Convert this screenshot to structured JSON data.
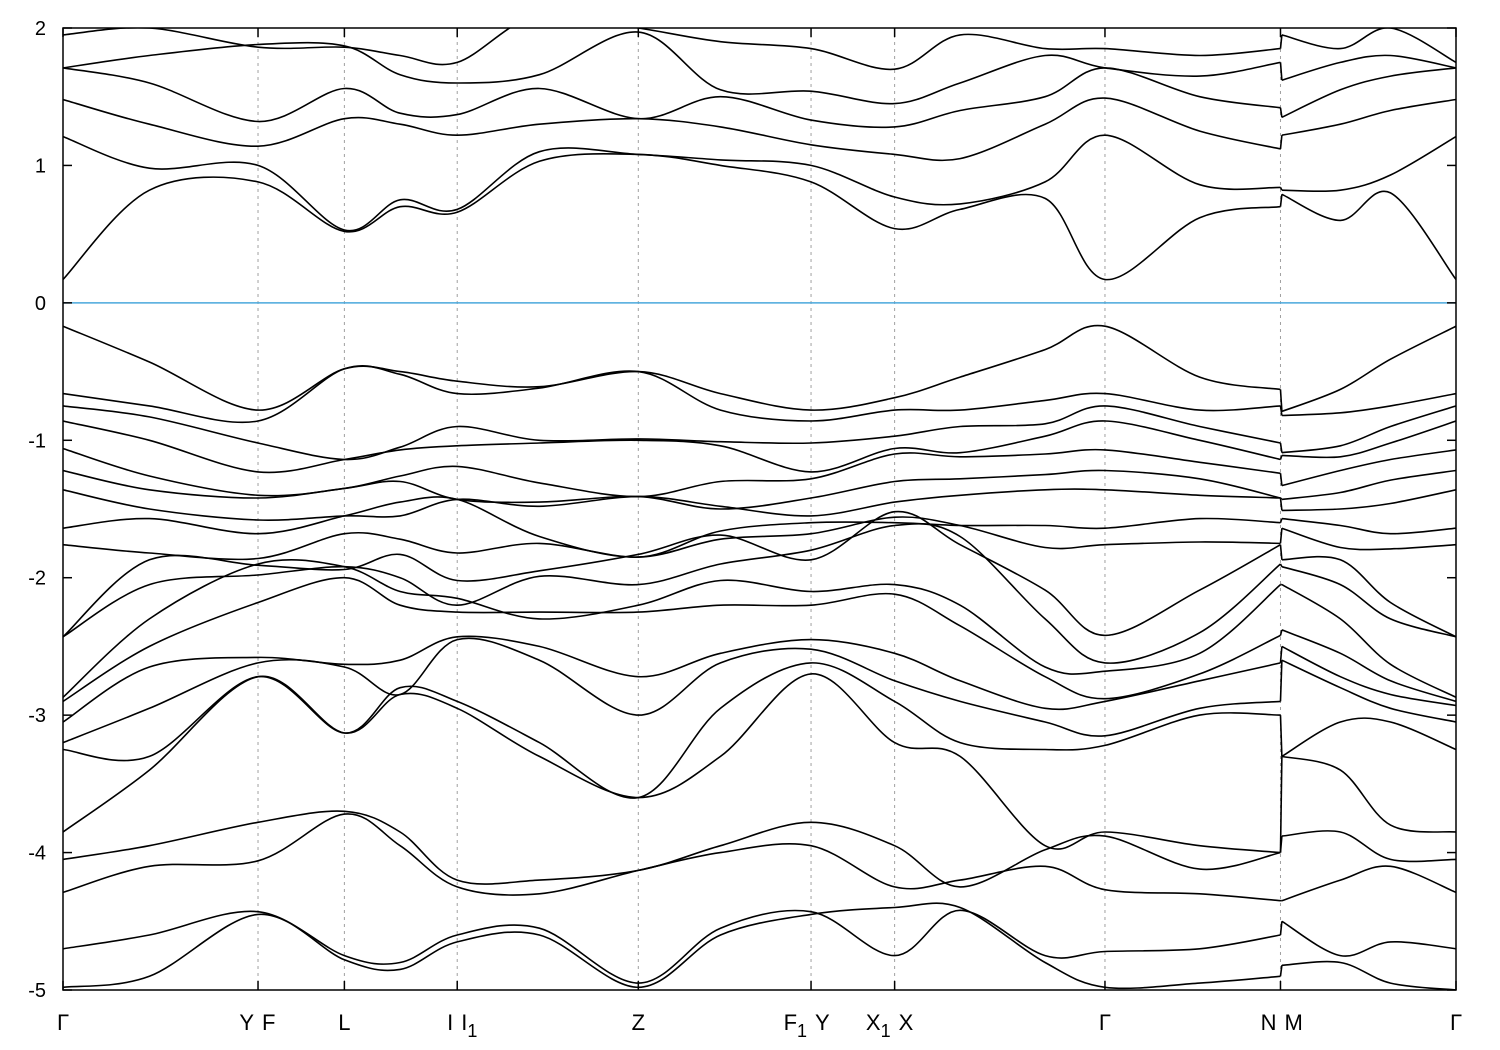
{
  "chart_data": {
    "type": "line",
    "title": "",
    "xlabel": "",
    "ylabel": "",
    "ylim": [
      -5,
      2
    ],
    "xlim": [
      0,
      1
    ],
    "yticks": [
      -5,
      -4,
      -3,
      -2,
      -1,
      0,
      1,
      2
    ],
    "xticks": [
      {
        "k": 0.0,
        "labels": [
          "Γ"
        ]
      },
      {
        "k": 0.14,
        "labels": [
          "Y",
          "F"
        ],
        "labels_overlap": true
      },
      {
        "k": 0.202,
        "labels": [
          "L"
        ]
      },
      {
        "k": 0.283,
        "labels": [
          "I",
          "I₁"
        ]
      },
      {
        "k": 0.413,
        "labels": [
          "Z"
        ]
      },
      {
        "k": 0.537,
        "labels": [
          "F₁",
          "Y"
        ]
      },
      {
        "k": 0.597,
        "labels": [
          "X₁",
          "X"
        ]
      },
      {
        "k": 0.748,
        "labels": [
          "Γ"
        ]
      },
      {
        "k": 0.874,
        "labels": [
          "N",
          "M"
        ]
      },
      {
        "k": 1.0,
        "labels": [
          "Γ"
        ]
      }
    ],
    "grid": "dashed vertical lines at high-symmetry points",
    "fermi_level": 0,
    "colors": {
      "bands": "#000000",
      "fermi_line": "#4aa8dc",
      "grid": "#a0a0a0"
    },
    "k": [
      0.0,
      0.062,
      0.14,
      0.202,
      0.242,
      0.283,
      0.342,
      0.413,
      0.472,
      0.537,
      0.597,
      0.644,
      0.705,
      0.748,
      0.816,
      0.874,
      0.875,
      0.917,
      0.953,
      1.0
    ],
    "discontinuity_after_index": 15,
    "bands": [
      [
        1.95,
        2.0,
        1.86,
        1.86,
        1.8,
        1.75,
        2.1,
        2.0,
        1.9,
        1.85,
        1.7,
        1.95,
        1.85,
        1.85,
        1.8,
        1.85,
        1.95,
        1.85,
        2.0,
        1.75
      ],
      [
        1.71,
        1.8,
        1.88,
        1.87,
        1.66,
        1.6,
        1.66,
        1.97,
        1.55,
        1.54,
        1.45,
        1.6,
        1.8,
        1.71,
        1.65,
        1.75,
        1.62,
        1.75,
        1.8,
        1.71
      ],
      [
        1.71,
        1.6,
        1.32,
        1.56,
        1.38,
        1.37,
        1.56,
        1.34,
        1.5,
        1.33,
        1.28,
        1.4,
        1.5,
        1.71,
        1.5,
        1.42,
        1.35,
        1.55,
        1.65,
        1.71
      ],
      [
        1.48,
        1.3,
        1.14,
        1.34,
        1.3,
        1.22,
        1.3,
        1.34,
        1.28,
        1.15,
        1.08,
        1.05,
        1.3,
        1.49,
        1.25,
        1.12,
        1.22,
        1.3,
        1.4,
        1.48
      ],
      [
        1.21,
        0.98,
        1.0,
        0.53,
        0.75,
        0.68,
        1.1,
        1.08,
        1.04,
        1.0,
        0.77,
        0.72,
        0.88,
        1.22,
        0.86,
        0.84,
        0.82,
        0.82,
        0.93,
        1.21
      ],
      [
        0.17,
        0.82,
        0.88,
        0.52,
        0.7,
        0.66,
        1.03,
        1.08,
        1.0,
        0.88,
        0.54,
        0.68,
        0.76,
        0.17,
        0.62,
        0.7,
        0.79,
        0.6,
        0.8,
        0.17
      ],
      [
        -0.17,
        -0.43,
        -0.78,
        -0.48,
        -0.5,
        -0.57,
        -0.61,
        -0.5,
        -0.66,
        -0.78,
        -0.69,
        -0.54,
        -0.34,
        -0.17,
        -0.54,
        -0.63,
        -0.79,
        -0.63,
        -0.41,
        -0.17
      ],
      [
        -0.66,
        -0.75,
        -0.86,
        -0.48,
        -0.52,
        -0.66,
        -0.62,
        -0.5,
        -0.78,
        -0.86,
        -0.78,
        -0.78,
        -0.71,
        -0.66,
        -0.78,
        -0.75,
        -0.82,
        -0.8,
        -0.75,
        -0.66
      ],
      [
        -0.75,
        -0.83,
        -1.02,
        -1.14,
        -1.05,
        -0.9,
        -1.0,
        -0.99,
        -1.01,
        -1.02,
        -0.97,
        -0.9,
        -0.88,
        -0.75,
        -0.9,
        -1.02,
        -1.09,
        -1.04,
        -0.9,
        -0.75
      ],
      [
        -0.86,
        -1.0,
        -1.23,
        -1.14,
        -1.07,
        -1.04,
        -1.02,
        -1.0,
        -1.04,
        -1.23,
        -1.06,
        -1.09,
        -0.97,
        -0.86,
        -1.0,
        -1.14,
        -1.11,
        -1.12,
        -1.02,
        -0.86
      ],
      [
        -1.06,
        -1.26,
        -1.4,
        -1.35,
        -1.26,
        -1.19,
        -1.31,
        -1.41,
        -1.3,
        -1.28,
        -1.1,
        -1.12,
        -1.1,
        -1.07,
        -1.16,
        -1.24,
        -1.33,
        -1.22,
        -1.14,
        -1.07
      ],
      [
        -1.22,
        -1.36,
        -1.42,
        -1.35,
        -1.3,
        -1.43,
        -1.45,
        -1.41,
        -1.5,
        -1.42,
        -1.3,
        -1.28,
        -1.25,
        -1.22,
        -1.28,
        -1.42,
        -1.43,
        -1.38,
        -1.29,
        -1.22
      ],
      [
        -1.36,
        -1.5,
        -1.58,
        -1.55,
        -1.55,
        -1.43,
        -1.48,
        -1.41,
        -1.48,
        -1.55,
        -1.45,
        -1.4,
        -1.36,
        -1.36,
        -1.4,
        -1.42,
        -1.51,
        -1.5,
        -1.46,
        -1.36
      ],
      [
        -1.64,
        -1.57,
        -1.68,
        -1.55,
        -1.45,
        -1.43,
        -1.7,
        -1.85,
        -1.66,
        -1.6,
        -1.6,
        -1.62,
        -1.62,
        -1.64,
        -1.57,
        -1.6,
        -1.57,
        -1.62,
        -1.68,
        -1.64
      ],
      [
        -1.76,
        -1.82,
        -1.86,
        -1.68,
        -1.72,
        -1.82,
        -1.75,
        -1.85,
        -1.72,
        -1.68,
        -1.56,
        -1.62,
        -1.78,
        -1.76,
        -1.74,
        -1.75,
        -1.64,
        -1.78,
        -1.79,
        -1.76
      ],
      [
        -2.43,
        -1.87,
        -1.91,
        -1.94,
        -1.83,
        -2.02,
        -1.95,
        -1.83,
        -1.69,
        -1.87,
        -1.52,
        -1.76,
        -2.09,
        -2.42,
        -2.09,
        -1.76,
        -1.87,
        -1.87,
        -2.18,
        -2.43
      ],
      [
        -2.43,
        -2.05,
        -1.98,
        -1.92,
        -2.0,
        -2.2,
        -1.99,
        -2.05,
        -1.9,
        -1.8,
        -1.62,
        -1.7,
        -2.3,
        -2.62,
        -2.4,
        -1.9,
        -1.92,
        -2.05,
        -2.3,
        -2.43
      ],
      [
        -2.87,
        -2.3,
        -1.9,
        -1.92,
        -2.1,
        -2.15,
        -2.3,
        -2.2,
        -2.02,
        -2.1,
        -2.05,
        -2.2,
        -2.65,
        -2.68,
        -2.55,
        -2.05,
        -2.05,
        -2.3,
        -2.63,
        -2.87
      ],
      [
        -2.9,
        -2.5,
        -2.18,
        -2.0,
        -2.2,
        -2.25,
        -2.25,
        -2.25,
        -2.2,
        -2.2,
        -2.12,
        -2.35,
        -2.72,
        -2.88,
        -2.7,
        -2.42,
        -2.38,
        -2.55,
        -2.75,
        -2.9
      ],
      [
        -3.05,
        -2.65,
        -2.58,
        -2.63,
        -2.6,
        -2.43,
        -2.5,
        -2.72,
        -2.55,
        -2.45,
        -2.55,
        -2.75,
        -2.95,
        -2.9,
        -2.75,
        -2.62,
        -2.5,
        -2.72,
        -2.85,
        -2.93
      ],
      [
        -3.2,
        -2.95,
        -2.62,
        -2.65,
        -2.85,
        -2.45,
        -2.6,
        -3.0,
        -2.62,
        -2.52,
        -2.75,
        -2.9,
        -3.05,
        -3.15,
        -2.95,
        -2.9,
        -2.6,
        -2.8,
        -2.95,
        -3.05
      ],
      [
        -3.25,
        -3.3,
        -2.72,
        -3.13,
        -2.8,
        -2.9,
        -3.2,
        -3.6,
        -2.95,
        -2.62,
        -2.9,
        -3.2,
        -3.25,
        -3.22,
        -3.0,
        -3.0,
        -3.3,
        -3.05,
        -3.05,
        -3.25
      ],
      [
        -3.85,
        -3.4,
        -2.72,
        -3.13,
        -2.85,
        -2.95,
        -3.3,
        -3.6,
        -3.3,
        -2.7,
        -3.2,
        -3.3,
        -3.95,
        -3.85,
        -3.95,
        -4.0,
        -3.3,
        -3.4,
        -3.8,
        -3.85
      ],
      [
        -4.05,
        -3.95,
        -3.78,
        -3.7,
        -3.85,
        -4.2,
        -4.2,
        -4.13,
        -3.95,
        -3.78,
        -3.95,
        -4.25,
        -3.98,
        -3.88,
        -4.12,
        -4.0,
        -3.88,
        -3.85,
        -4.05,
        -4.05
      ],
      [
        -4.29,
        -4.1,
        -4.06,
        -3.72,
        -3.95,
        -4.25,
        -4.3,
        -4.13,
        -4.0,
        -3.95,
        -4.25,
        -4.2,
        -4.1,
        -4.27,
        -4.3,
        -4.35,
        -4.35,
        -4.2,
        -4.1,
        -4.29
      ],
      [
        -4.7,
        -4.6,
        -4.43,
        -4.75,
        -4.8,
        -4.6,
        -4.55,
        -4.95,
        -4.55,
        -4.43,
        -4.75,
        -4.42,
        -4.75,
        -4.72,
        -4.7,
        -4.6,
        -4.5,
        -4.75,
        -4.65,
        -4.7
      ],
      [
        -4.98,
        -4.9,
        -4.45,
        -4.78,
        -4.85,
        -4.65,
        -4.6,
        -4.98,
        -4.6,
        -4.45,
        -4.4,
        -4.4,
        -4.8,
        -4.98,
        -4.95,
        -4.9,
        -4.82,
        -4.8,
        -4.95,
        -5.0
      ]
    ]
  }
}
